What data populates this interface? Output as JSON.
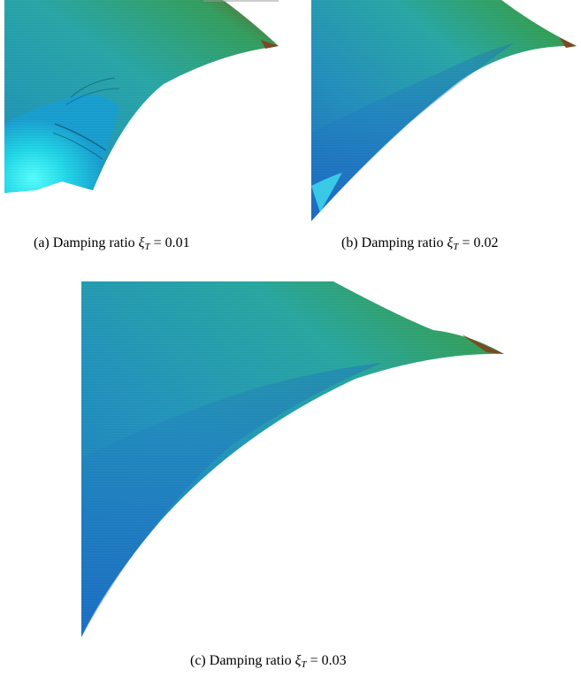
{
  "figures": [
    {
      "id": "a",
      "label": "(a)",
      "caption": "Damping ratio",
      "symbol": "ξ",
      "subscript": "T",
      "relation": "=",
      "value": "0.01"
    },
    {
      "id": "b",
      "label": "(b)",
      "caption": "Damping ratio",
      "symbol": "ξ",
      "subscript": "T",
      "relation": "=",
      "value": "0.02"
    },
    {
      "id": "c",
      "label": "(c)",
      "caption": "Damping ratio",
      "symbol": "ξ",
      "subscript": "T",
      "relation": "=",
      "value": "0.03"
    }
  ],
  "colors": {
    "surface_dark": "#1f6fb8",
    "surface_mid": "#2aa7b5",
    "surface_green": "#2f9a55",
    "surface_tip": "#7a4a25",
    "cyan_highlight": "#33f0f0"
  }
}
